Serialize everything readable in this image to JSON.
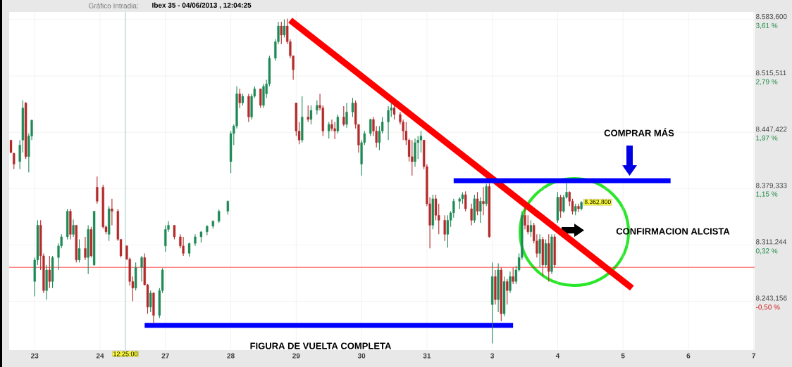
{
  "chart_data": {
    "type": "candlestick",
    "title": "Gráfico Intradia:",
    "subtitle": "Ibex 35 - 04/06/2013 , 12:04:25",
    "categories": [
      null,
      null,
      null,
      null,
      null,
      null,
      null,
      null,
      "23",
      null,
      null,
      null,
      null,
      null,
      null,
      null,
      null,
      null,
      null,
      null,
      null,
      null,
      null,
      null,
      null,
      null,
      null,
      null,
      null,
      null,
      "24",
      null,
      null,
      null,
      null,
      null,
      null,
      null,
      null,
      null,
      null,
      null,
      null,
      null,
      null,
      null,
      null,
      null,
      null,
      null,
      null,
      null,
      "27",
      null,
      null,
      null,
      null,
      null,
      null,
      null,
      null,
      null,
      null,
      null,
      null,
      null,
      null,
      null,
      null,
      null,
      null,
      null,
      null,
      null,
      "28",
      null,
      null,
      null,
      null,
      null,
      null,
      null,
      null,
      null,
      null,
      null,
      null,
      null,
      null,
      null,
      null,
      null,
      null,
      null,
      null,
      null,
      "29",
      null,
      null,
      null,
      null,
      null,
      null,
      null,
      null,
      null,
      null,
      null,
      null,
      null,
      null,
      null,
      null,
      null,
      null,
      null,
      null,
      null,
      "30",
      null,
      null,
      null,
      null,
      null,
      null,
      null,
      null,
      null,
      null,
      null,
      null,
      null,
      null,
      null,
      null,
      null,
      null,
      null,
      null,
      null,
      "31",
      null,
      null,
      null,
      null,
      null,
      null,
      null,
      null,
      null,
      null,
      null,
      null,
      null,
      null,
      null,
      null,
      null,
      null,
      null,
      null,
      null,
      "3",
      null,
      null,
      null,
      null,
      null,
      null,
      null,
      null,
      null,
      null,
      null,
      null,
      null,
      null,
      null,
      null,
      null,
      null,
      null,
      null,
      null,
      "4",
      null,
      null,
      null,
      null,
      null,
      null,
      null,
      null,
      null,
      null,
      null,
      null,
      null,
      null,
      null,
      null,
      null,
      null,
      null,
      null,
      null,
      "5",
      null,
      null,
      null,
      null,
      null,
      null,
      null,
      null,
      null,
      null,
      null,
      null,
      null,
      null,
      null,
      null,
      null,
      null,
      null,
      null,
      null,
      "6",
      null,
      null,
      null,
      null,
      null,
      null,
      null,
      null,
      null,
      null,
      null,
      null,
      null,
      null,
      null,
      null,
      null,
      null,
      null,
      null,
      null,
      "7"
    ],
    "ohlc": [
      [
        8438,
        8438,
        8422,
        8423
      ],
      [
        8422,
        8423,
        8403,
        8409
      ],
      null,
      [
        8412,
        8438,
        8403,
        8432
      ],
      [
        8438,
        8486,
        8423,
        8477
      ],
      [
        8483,
        8484,
        8415,
        8418
      ],
      [
        8418,
        8446,
        8399,
        8443
      ],
      [
        8443,
        8463,
        8438,
        8462
      ],
      [
        8267,
        8296,
        8249,
        8293
      ],
      [
        8293,
        8341,
        8287,
        8335
      ],
      [
        8335,
        8341,
        8281,
        8298
      ],
      [
        8298,
        8301,
        8253,
        8256
      ],
      [
        8256,
        8287,
        8245,
        8281
      ],
      [
        8281,
        8298,
        8259,
        8267
      ],
      [
        8267,
        8298,
        8259,
        8296
      ],
      null,
      [
        8296,
        8313,
        8281,
        8310
      ],
      [
        8310,
        8324,
        8307,
        8321
      ],
      null,
      [
        8321,
        8355,
        8318,
        8352
      ],
      [
        8352,
        8355,
        8318,
        8324
      ],
      [
        8324,
        8342,
        8321,
        8335
      ],
      [
        8335,
        8335,
        8290,
        8293
      ],
      [
        8293,
        8318,
        8290,
        8307
      ],
      null,
      [
        8307,
        8321,
        8293,
        8296
      ],
      [
        8296,
        8335,
        8276,
        8330
      ],
      [
        8330,
        8333,
        8296,
        8298
      ],
      [
        8287,
        8352,
        8286,
        8352
      ],
      [
        8381,
        8394,
        8361,
        8364
      ],
      null,
      [
        8381,
        8384,
        8331,
        8333
      ],
      [
        8333,
        8335,
        8324,
        8327
      ],
      [
        8324,
        8358,
        8316,
        8355
      ],
      [
        8355,
        8367,
        8335,
        8352
      ],
      null,
      [
        8352,
        8355,
        8316,
        8318
      ],
      [
        8318,
        8318,
        8296,
        8298
      ],
      null,
      [
        8310,
        8311,
        8293,
        8294
      ],
      [
        8294,
        8296,
        8262,
        8267
      ],
      [
        8267,
        8273,
        8243,
        8259
      ],
      [
        8259,
        8290,
        8256,
        8284
      ],
      null,
      [
        8284,
        8298,
        8267,
        8296
      ],
      [
        8296,
        8301,
        8262,
        8263
      ],
      [
        8263,
        8264,
        8228,
        8236
      ],
      [
        8236,
        8256,
        8230,
        8253
      ],
      [
        8253,
        8254,
        8216,
        8226
      ],
      null,
      [
        8226,
        8259,
        8223,
        8256
      ],
      [
        8256,
        8283,
        8253,
        8281
      ],
      [
        8310,
        8335,
        8303,
        8330
      ],
      [
        8330,
        8340,
        8327,
        8335
      ],
      null,
      [
        8335,
        8335,
        8318,
        8321
      ],
      null,
      [
        8321,
        8324,
        8307,
        8310
      ],
      [
        8310,
        8321,
        8298,
        8301
      ],
      null,
      [
        8301,
        8314,
        8297,
        8313
      ],
      null,
      [
        8313,
        8324,
        8310,
        8321
      ],
      null,
      [
        8321,
        8328,
        8314,
        8327
      ],
      null,
      [
        8327,
        8335,
        8323,
        8334
      ],
      null,
      [
        8334,
        8341,
        8331,
        8340
      ],
      null,
      [
        8340,
        8354,
        8338,
        8352
      ],
      null,
      null,
      [
        8352,
        8365,
        8348,
        8364
      ],
      [
        8412,
        8449,
        8398,
        8446
      ],
      [
        8446,
        8457,
        8432,
        8455
      ],
      [
        8455,
        8503,
        8452,
        8494
      ],
      [
        8494,
        8500,
        8477,
        8483
      ],
      [
        8483,
        8494,
        8480,
        8491
      ],
      null,
      [
        8491,
        8494,
        8460,
        8466
      ],
      [
        8466,
        8494,
        8463,
        8491
      ],
      [
        8491,
        8503,
        8489,
        8500
      ],
      null,
      [
        8500,
        8500,
        8477,
        8480
      ],
      [
        8480,
        8506,
        8477,
        8503
      ],
      [
        8494,
        8511,
        8489,
        8506
      ],
      [
        8506,
        8540,
        8503,
        8537
      ],
      null,
      [
        8537,
        8560,
        8534,
        8557
      ],
      [
        8557,
        8581,
        8554,
        8576
      ],
      [
        8576,
        8581,
        8554,
        8565
      ],
      [
        8565,
        8584,
        8562,
        8576
      ],
      [
        8576,
        8585,
        8554,
        8557
      ],
      [
        8557,
        8560,
        8537,
        8540
      ],
      [
        8540,
        8540,
        8511,
        8523
      ],
      [
        8483,
        8483,
        8443,
        8449
      ],
      [
        8449,
        8460,
        8433,
        8438
      ],
      [
        8438,
        8491,
        8435,
        8466
      ],
      null,
      [
        8466,
        8480,
        8460,
        8463
      ],
      [
        8463,
        8480,
        8457,
        8474
      ],
      null,
      [
        8474,
        8486,
        8469,
        8480
      ],
      [
        8480,
        8494,
        8474,
        8477
      ],
      [
        8477,
        8480,
        8443,
        8449
      ],
      null,
      [
        8449,
        8460,
        8440,
        8457
      ],
      [
        8457,
        8463,
        8449,
        8452
      ],
      [
        8452,
        8460,
        8439,
        8449
      ],
      [
        8449,
        8469,
        8446,
        8466
      ],
      null,
      [
        8466,
        8479,
        8455,
        8457
      ],
      [
        8457,
        8483,
        8453,
        8472
      ],
      null,
      [
        8472,
        8489,
        8466,
        8483
      ],
      [
        8483,
        8486,
        8452,
        8457
      ],
      [
        8457,
        8457,
        8423,
        8432
      ],
      [
        8409,
        8438,
        8395,
        8435
      ],
      [
        8435,
        8449,
        8432,
        8446
      ],
      null,
      [
        8446,
        8464,
        8443,
        8463
      ],
      [
        8463,
        8466,
        8443,
        8449
      ],
      [
        8449,
        8455,
        8429,
        8435
      ],
      [
        8435,
        8455,
        8426,
        8449
      ],
      [
        8449,
        8466,
        8446,
        8460
      ],
      null,
      [
        8460,
        8479,
        8438,
        8474
      ],
      [
        8474,
        8483,
        8466,
        8477
      ],
      [
        8477,
        8483,
        8463,
        8469
      ],
      null,
      [
        8469,
        8472,
        8457,
        8460
      ],
      [
        8460,
        8463,
        8438,
        8449
      ],
      [
        8449,
        8460,
        8432,
        8438
      ],
      [
        8438,
        8440,
        8412,
        8418
      ],
      [
        8418,
        8438,
        8395,
        8412
      ],
      [
        8412,
        8440,
        8406,
        8435
      ],
      [
        8435,
        8443,
        8415,
        8438
      ],
      [
        8438,
        8449,
        8423,
        8443
      ],
      [
        8438,
        8438,
        8403,
        8406
      ],
      [
        8406,
        8409,
        8358,
        8361
      ],
      [
        8361,
        8369,
        8307,
        8335
      ],
      [
        8335,
        8372,
        8330,
        8367
      ],
      [
        8367,
        8372,
        8341,
        8347
      ],
      [
        8347,
        8361,
        8324,
        8341
      ],
      null,
      [
        8341,
        8347,
        8316,
        8324
      ],
      [
        8324,
        8347,
        8308,
        8341
      ],
      [
        8341,
        8352,
        8333,
        8350
      ],
      [
        8350,
        8367,
        8344,
        8364
      ],
      null,
      [
        8364,
        8369,
        8355,
        8367
      ],
      [
        8367,
        8375,
        8361,
        8372
      ],
      [
        8372,
        8376,
        8352,
        8355
      ],
      null,
      [
        8355,
        8361,
        8335,
        8341
      ],
      [
        8341,
        8372,
        8338,
        8367
      ],
      [
        8367,
        8375,
        8347,
        8352
      ],
      [
        8352,
        8369,
        8338,
        8364
      ],
      [
        8364,
        8381,
        8347,
        8361
      ],
      [
        8361,
        8385,
        8358,
        8382
      ],
      [
        8382,
        8386,
        8320,
        8321
      ],
      [
        8239,
        8290,
        8192,
        8273
      ],
      [
        8273,
        8281,
        8239,
        8245
      ],
      [
        8245,
        8289,
        8230,
        8281
      ],
      [
        8281,
        8284,
        8219,
        8228
      ],
      [
        8228,
        8273,
        8225,
        8267
      ],
      [
        8267,
        8270,
        8239,
        8256
      ],
      [
        8256,
        8279,
        8253,
        8273
      ],
      [
        8273,
        8284,
        8264,
        8267
      ],
      [
        8267,
        8286,
        8264,
        8281
      ],
      [
        8281,
        8301,
        8279,
        8296
      ],
      [
        8296,
        8352,
        8293,
        8347
      ],
      [
        8347,
        8358,
        8330,
        8335
      ],
      [
        8335,
        8347,
        8324,
        8327
      ],
      [
        8327,
        8341,
        8321,
        8335
      ],
      [
        8335,
        8338,
        8313,
        8316
      ],
      [
        8316,
        8324,
        8296,
        8301
      ],
      [
        8301,
        8324,
        8284,
        8318
      ],
      [
        8318,
        8321,
        8273,
        8287
      ],
      [
        8287,
        8318,
        8284,
        8313
      ],
      [
        8313,
        8324,
        8267,
        8279
      ],
      [
        8279,
        8324,
        8276,
        8321
      ],
      [
        8321,
        8324,
        8284,
        8287
      ],
      [
        8341,
        8375,
        8338,
        8369
      ],
      [
        8369,
        8372,
        8344,
        8352
      ],
      [
        8352,
        8372,
        8350,
        8369
      ],
      [
        8369,
        8386,
        8367,
        8375
      ],
      [
        8375,
        8376,
        8358,
        8364
      ],
      [
        8364,
        8367,
        8348,
        8352
      ],
      [
        8352,
        8361,
        8347,
        8358
      ],
      [
        8358,
        8361,
        8351,
        8355
      ],
      [
        8355,
        8364,
        8353,
        8362.8
      ],
      null,
      null,
      null,
      null,
      null,
      null,
      null,
      null,
      null,
      null,
      null,
      null,
      null,
      null,
      null,
      null,
      null,
      null,
      null,
      null,
      null,
      null,
      null,
      null,
      null,
      null,
      null,
      null,
      null,
      null,
      null,
      null,
      null,
      null,
      null,
      null,
      null,
      null,
      null,
      null,
      null,
      null,
      null,
      null,
      null,
      null,
      null,
      null,
      null,
      null,
      null,
      null,
      null,
      null,
      null,
      null,
      null,
      null
    ],
    "colors": [
      "#b42b2b",
      "#b42b2b",
      null,
      "#1f8a57",
      "#1f8a57",
      "#b42b2b",
      "#1f8a57",
      "#1f8a57",
      "#1f8a57",
      "#1f8a57",
      "#b42b2b",
      "#b42b2b",
      "#1f8a57",
      "#b42b2b",
      "#1f8a57",
      null,
      "#1f8a57",
      "#1f8a57",
      null,
      "#1f8a57",
      "#b42b2b",
      "#1f8a57",
      "#b42b2b",
      "#1f8a57",
      null,
      "#b42b2b",
      "#1f8a57",
      "#b42b2b",
      "#1f8a57",
      "#b42b2b",
      null,
      "#b42b2b",
      "#b42b2b",
      "#1f8a57",
      "#b42b2b",
      null,
      "#b42b2b",
      "#b42b2b",
      null,
      "#b42b2b",
      "#b42b2b",
      "#b42b2b",
      "#1f8a57",
      null,
      "#1f8a57",
      "#b42b2b",
      "#b42b2b",
      "#1f8a57",
      "#b42b2b",
      null,
      "#1f8a57",
      "#1f8a57",
      "#1f8a57",
      "#1f8a57",
      null,
      "#b42b2b",
      null,
      "#b42b2b",
      "#b42b2b",
      null,
      "#1f8a57",
      null,
      "#1f8a57",
      null,
      "#1f8a57",
      null,
      "#1f8a57",
      null,
      "#1f8a57",
      null,
      "#1f8a57",
      null,
      null,
      "#1f8a57",
      "#1f8a57",
      "#1f8a57",
      "#1f8a57",
      "#b42b2b",
      "#1f8a57",
      null,
      "#b42b2b",
      "#1f8a57",
      "#1f8a57",
      null,
      "#b42b2b",
      "#1f8a57",
      "#1f8a57",
      "#1f8a57",
      null,
      "#1f8a57",
      "#1f8a57",
      "#b42b2b",
      "#1f8a57",
      "#b42b2b",
      "#b42b2b",
      "#b42b2b",
      "#b42b2b",
      "#b42b2b",
      "#1f8a57",
      null,
      "#b42b2b",
      "#1f8a57",
      null,
      "#1f8a57",
      "#b42b2b",
      "#b42b2b",
      null,
      "#1f8a57",
      "#b42b2b",
      "#b42b2b",
      "#1f8a57",
      null,
      "#b42b2b",
      "#1f8a57",
      null,
      "#1f8a57",
      "#b42b2b",
      "#b42b2b",
      "#1f8a57",
      "#1f8a57",
      null,
      "#1f8a57",
      "#b42b2b",
      "#b42b2b",
      "#1f8a57",
      "#1f8a57",
      null,
      "#1f8a57",
      "#1f8a57",
      "#b42b2b",
      null,
      "#b42b2b",
      "#b42b2b",
      "#b42b2b",
      "#b42b2b",
      "#b42b2b",
      "#1f8a57",
      "#1f8a57",
      "#1f8a57",
      "#b42b2b",
      "#b42b2b",
      "#b42b2b",
      "#1f8a57",
      "#b42b2b",
      "#b42b2b",
      null,
      "#b42b2b",
      "#1f8a57",
      "#1f8a57",
      "#1f8a57",
      null,
      "#1f8a57",
      "#1f8a57",
      "#b42b2b",
      null,
      "#b42b2b",
      "#1f8a57",
      "#b42b2b",
      "#1f8a57",
      "#b42b2b",
      "#1f8a57",
      "#b42b2b",
      "#1f8a57",
      "#b42b2b",
      "#1f8a57",
      "#b42b2b",
      "#1f8a57",
      "#b42b2b",
      "#1f8a57",
      "#b42b2b",
      "#1f8a57",
      "#1f8a57",
      "#1f8a57",
      "#b42b2b",
      "#b42b2b",
      "#1f8a57",
      "#b42b2b",
      "#b42b2b",
      "#1f8a57",
      "#b42b2b",
      "#1f8a57",
      "#b42b2b",
      "#1f8a57",
      "#b42b2b",
      "#1f8a57",
      "#b42b2b",
      "#1f8a57",
      "#1f8a57",
      "#b42b2b",
      "#b42b2b",
      "#1f8a57",
      "#b42b2b",
      "#1f8a57",
      null,
      null,
      null,
      null,
      null,
      null,
      null,
      null,
      null,
      null,
      null,
      null,
      null,
      null,
      null,
      null,
      null,
      null,
      null,
      null,
      null,
      null,
      null,
      null,
      null,
      null,
      null,
      null,
      null,
      null,
      null,
      null,
      null,
      null,
      null,
      null,
      null,
      null,
      null,
      null,
      null,
      null,
      null,
      null,
      null,
      null,
      null,
      null,
      null,
      null,
      null,
      null,
      null,
      null,
      null,
      null,
      null,
      null
    ],
    "series": [
      {
        "type": "line",
        "color": "#ff0000",
        "values": [
          null,
          null,
          null,
          null,
          null,
          null,
          null,
          null,
          null,
          null,
          null,
          null,
          null,
          null,
          null,
          null,
          null,
          null,
          null,
          null,
          null,
          null,
          null,
          null,
          null,
          null,
          null,
          null,
          null,
          null,
          null,
          null,
          null,
          null,
          null,
          null,
          null,
          null,
          null,
          null,
          null,
          null,
          null,
          null,
          null,
          null,
          null,
          null,
          null,
          null,
          null,
          null,
          null,
          null,
          null,
          null,
          null,
          null,
          null,
          null,
          null,
          null,
          null,
          null,
          null,
          null,
          null,
          null,
          null,
          null,
          null,
          null,
          null,
          null,
          null,
          null,
          null,
          null,
          null,
          null,
          null,
          null,
          null,
          null,
          null,
          null,
          null,
          null,
          null,
          null,
          null,
          null,
          null,
          null,
          8583,
          null,
          null,
          null,
          null,
          null,
          null,
          null,
          null,
          null,
          null,
          null,
          null,
          null,
          null,
          null,
          null,
          null,
          null,
          null,
          null,
          null,
          null,
          null,
          null,
          null,
          null,
          null,
          null,
          null,
          null,
          null,
          null,
          null,
          null,
          null,
          null,
          null,
          null,
          null,
          null,
          null,
          null,
          null,
          null,
          null,
          null,
          null,
          null,
          null,
          null,
          null,
          null,
          null,
          null,
          null,
          null,
          null,
          null,
          null,
          null,
          null,
          null,
          null,
          null,
          null,
          null,
          null,
          null,
          null,
          null,
          null,
          null,
          null,
          null,
          null,
          null,
          null,
          null,
          null,
          null,
          null,
          null,
          null,
          null,
          null,
          null,
          null,
          null,
          null,
          null,
          null,
          null,
          null,
          null,
          null,
          null,
          null,
          null,
          null,
          null,
          null,
          null,
          null,
          null,
          null,
          null,
          null,
          null,
          null,
          null,
          null,
          null,
          null,
          null,
          8259,
          null,
          null,
          null,
          null,
          null,
          null,
          null,
          null,
          null,
          null,
          null,
          null,
          null,
          null,
          null,
          null,
          null,
          null,
          null,
          null,
          null,
          null,
          null,
          null,
          null,
          null,
          null,
          null,
          null,
          null,
          null,
          null,
          null,
          null,
          null,
          null,
          null,
          null,
          null,
          null,
          null
        ]
      },
      {
        "type": "line",
        "color": "#0000ff",
        "values": [
          null,
          null,
          null,
          null,
          null,
          null,
          null,
          null,
          null,
          null,
          null,
          null,
          null,
          null,
          null,
          null,
          null,
          null,
          null,
          null,
          null,
          null,
          null,
          null,
          null,
          null,
          null,
          null,
          null,
          null,
          null,
          null,
          null,
          null,
          null,
          null,
          null,
          null,
          null,
          null,
          null,
          null,
          null,
          null,
          null,
          null,
          null,
          null,
          null,
          null,
          null,
          null,
          null,
          null,
          null,
          null,
          null,
          null,
          null,
          null,
          null,
          null,
          null,
          null,
          null,
          null,
          null,
          null,
          null,
          null,
          null,
          null,
          null,
          null,
          null,
          null,
          null,
          null,
          null,
          null,
          null,
          null,
          null,
          null,
          null,
          null,
          null,
          null,
          null,
          null,
          null,
          null,
          null,
          null,
          null,
          null,
          null,
          null,
          null,
          null,
          null,
          null,
          null,
          null,
          null,
          null,
          null,
          null,
          null,
          null,
          null,
          null,
          null,
          null,
          null,
          null,
          null,
          null,
          null,
          null,
          null,
          null,
          null,
          null,
          null,
          null,
          null,
          null,
          null,
          null,
          null,
          null,
          null,
          null,
          null,
          null,
          null,
          null,
          null,
          null,
          null,
          null,
          null,
          null,
          null,
          null,
          null,
          null,
          null,
          8389,
          null,
          null,
          null,
          null,
          null,
          null,
          null,
          null,
          null,
          null,
          null,
          null,
          null,
          null,
          null,
          null,
          null,
          null,
          null,
          null,
          null,
          null,
          null,
          null,
          null,
          null,
          null,
          null,
          null,
          null,
          null,
          null,
          null,
          null,
          null,
          null,
          null,
          null,
          null,
          null,
          null,
          null,
          null,
          null,
          null,
          null,
          null,
          null,
          null,
          null,
          null,
          null,
          null,
          null,
          null,
          null,
          null,
          null,
          null,
          null,
          null,
          null,
          null,
          null,
          null,
          null,
          null,
          null,
          null,
          null,
          null,
          null,
          8389,
          null,
          null,
          null,
          null,
          null,
          null,
          null,
          null,
          null,
          null,
          null,
          null,
          null,
          null,
          null,
          null,
          null,
          null,
          null,
          null,
          null,
          null,
          null,
          null,
          null,
          null,
          null,
          null
        ]
      },
      {
        "type": "line",
        "color": "#0000ff",
        "values": [
          null,
          null,
          null,
          null,
          null,
          null,
          null,
          null,
          null,
          null,
          null,
          null,
          null,
          null,
          null,
          null,
          null,
          null,
          null,
          null,
          null,
          null,
          null,
          null,
          null,
          null,
          null,
          null,
          null,
          null,
          null,
          null,
          null,
          null,
          null,
          null,
          null,
          null,
          null,
          null,
          null,
          null,
          null,
          null,
          null,
          8214,
          null,
          null,
          null,
          null,
          null,
          null,
          null,
          null,
          null,
          null,
          null,
          null,
          null,
          null,
          null,
          null,
          null,
          null,
          null,
          null,
          null,
          null,
          null,
          null,
          null,
          null,
          null,
          null,
          null,
          null,
          null,
          null,
          null,
          null,
          null,
          null,
          null,
          null,
          null,
          null,
          null,
          null,
          null,
          null,
          null,
          null,
          null,
          null,
          null,
          null,
          null,
          null,
          null,
          null,
          null,
          null,
          null,
          null,
          null,
          null,
          null,
          null,
          null,
          null,
          null,
          null,
          null,
          null,
          null,
          null,
          null,
          null,
          null,
          null,
          null,
          null,
          null,
          null,
          null,
          null,
          null,
          null,
          null,
          null,
          null,
          null,
          null,
          null,
          null,
          null,
          null,
          null,
          null,
          null,
          null,
          null,
          null,
          null,
          null,
          null,
          null,
          null,
          null,
          null,
          null,
          null,
          null,
          null,
          null,
          null,
          null,
          null,
          null,
          null,
          null,
          null,
          null,
          null,
          null,
          null,
          null,
          null,
          null,
          8214,
          null,
          null,
          null,
          null,
          null,
          null,
          null,
          null,
          null,
          null,
          null,
          null,
          null,
          null,
          null,
          null,
          null,
          null,
          null,
          null,
          null,
          null,
          null,
          null,
          null,
          null,
          null,
          null,
          null,
          null,
          null,
          null,
          null,
          null,
          null,
          null,
          null,
          null,
          null,
          null,
          null,
          null,
          null,
          null,
          null,
          null,
          null,
          null,
          null,
          null,
          null,
          null,
          null,
          null,
          null,
          null,
          null,
          null,
          null,
          null,
          null,
          null,
          null,
          null,
          null,
          null,
          null,
          null,
          null,
          null,
          null,
          null,
          null,
          null,
          null,
          null,
          null,
          null,
          null,
          null,
          null
        ]
      }
    ],
    "ylim": [
      8184,
      8593
    ],
    "yticks": [
      {
        "value": 8243.156,
        "label": "8.243,156"
      },
      {
        "value": 8311.244,
        "label": "8.311,244"
      },
      {
        "value": 8379.333,
        "label": "8.379,333"
      },
      {
        "value": 8447.422,
        "label": "8.447,422"
      },
      {
        "value": 8515.511,
        "label": "8.515,511"
      },
      {
        "value": 8583.6,
        "label": "8.583,600"
      }
    ],
    "y2lim": [
      -1.211,
      3.726
    ],
    "y2ticks": [
      {
        "value": -0.5,
        "label": "-0,50 %"
      },
      {
        "value": 0.32,
        "label": "0,32 %"
      },
      {
        "value": 1.15,
        "label": "1,15 %"
      },
      {
        "value": 1.97,
        "label": "1,97 %"
      },
      {
        "value": 2.79,
        "label": "2,79 %"
      },
      {
        "value": 3.61,
        "label": "3,61 %"
      }
    ],
    "grid": true,
    "ref_lines": [
      {
        "axis": "y",
        "value": 8284.3,
        "color": "#ff0000"
      }
    ],
    "annotations": [
      "COMPRAR MÁS",
      "CONFIRMACION ALCISTA",
      "FIGURA DE VUELTA COMPLETA",
      "8.362,800",
      "12:25:00"
    ]
  }
}
